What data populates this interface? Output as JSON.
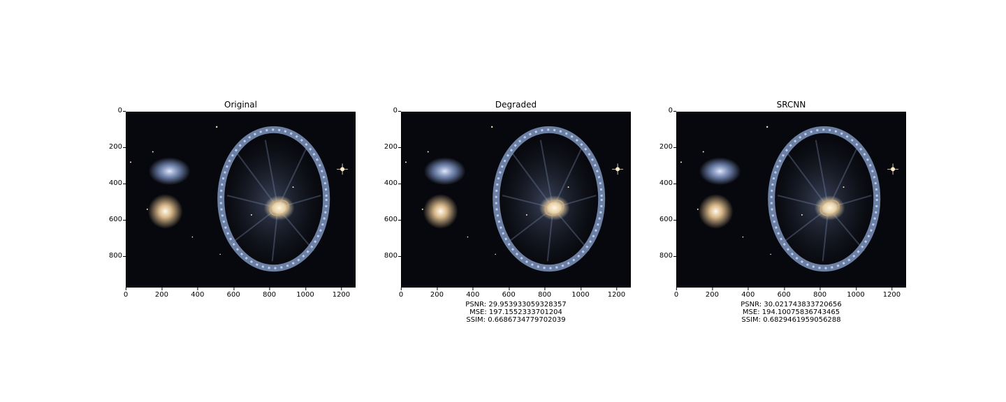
{
  "panels": [
    {
      "title": "Original",
      "metrics": {
        "psnr": "",
        "mse": "",
        "ssim": ""
      }
    },
    {
      "title": "Degraded",
      "metrics": {
        "psnr": "PSNR: 29.953933059328357",
        "mse": "MSE: 197.1552333701204",
        "ssim": "SSIM: 0.6686734779702039"
      }
    },
    {
      "title": "SRCNN",
      "metrics": {
        "psnr": "PSNR: 30.021743833720656",
        "mse": "MSE: 194.10075836743465",
        "ssim": "SSIM: 0.6829461959056288"
      }
    }
  ],
  "axes": {
    "y_ticks": [
      "0",
      "200",
      "400",
      "600",
      "800"
    ],
    "x_ticks": [
      "0",
      "200",
      "400",
      "600",
      "800",
      "1000",
      "1200"
    ],
    "x_lim": [
      0,
      1280
    ],
    "y_lim": [
      0,
      970
    ]
  },
  "image": {
    "subject": "cartwheel-galaxy",
    "colors": {
      "background": "#07080d",
      "ring": "#8fa8d6",
      "core": "#e8d2a8",
      "companion": "#d9b98a"
    }
  }
}
